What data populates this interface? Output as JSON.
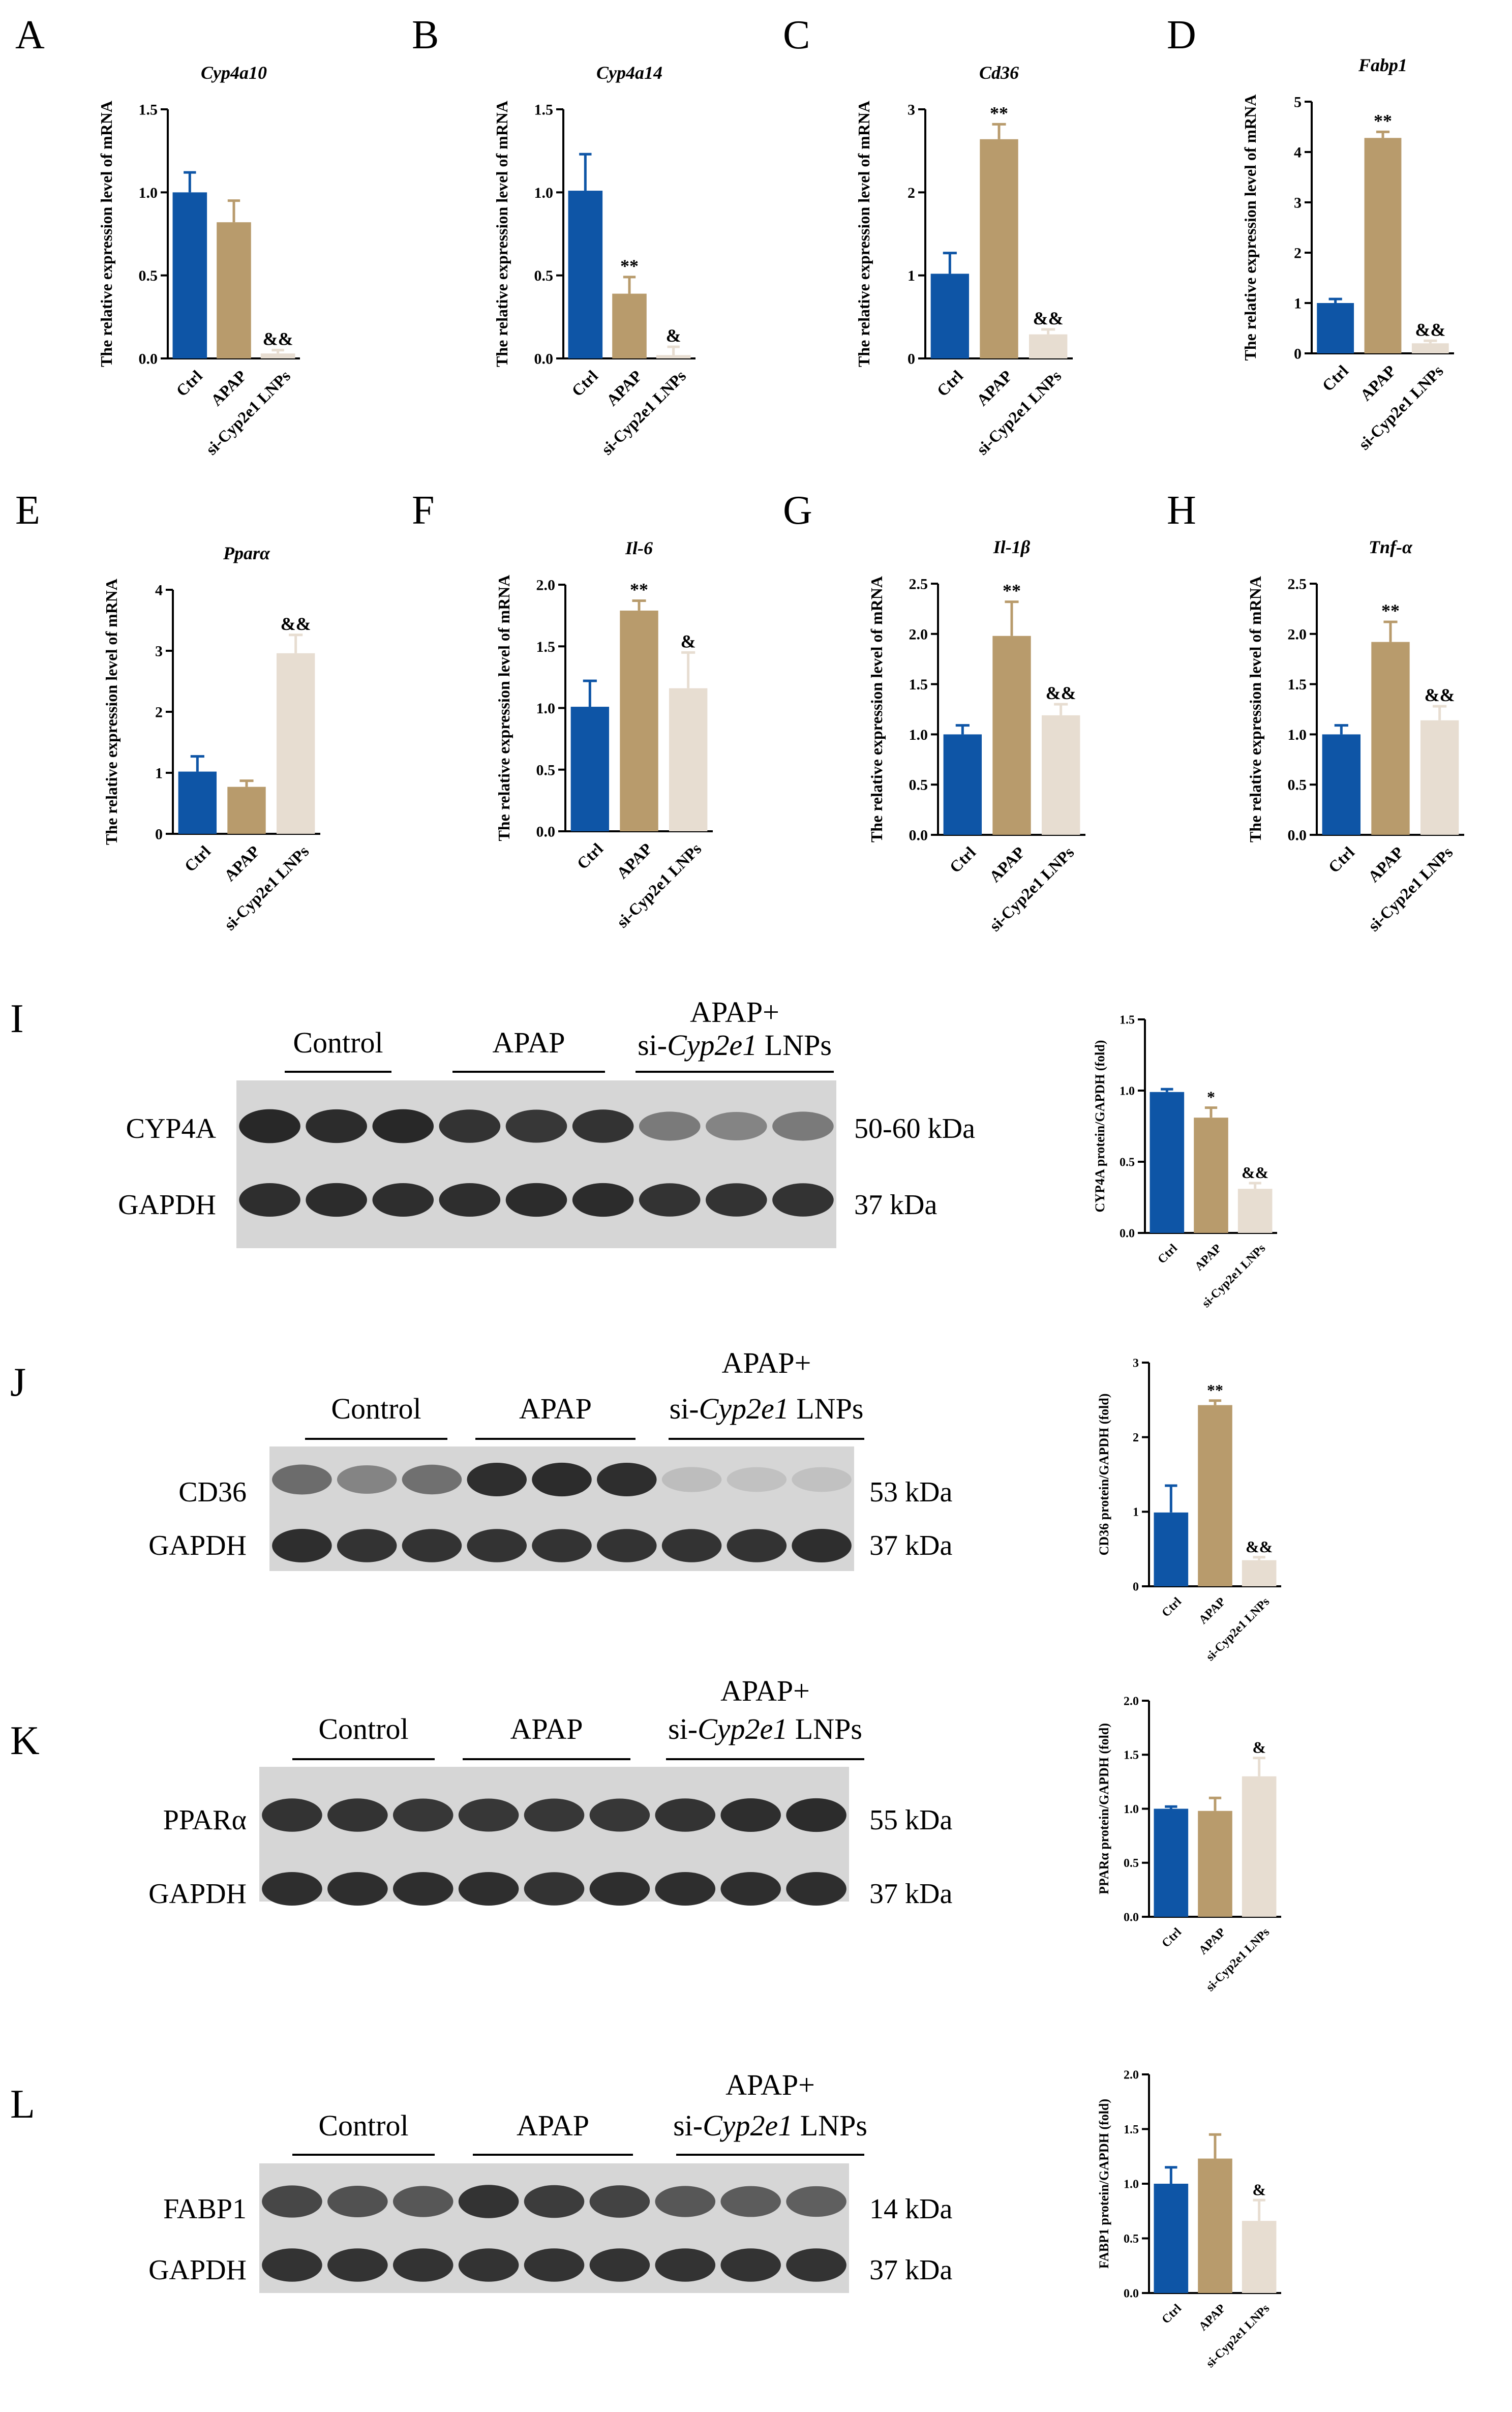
{
  "colors": {
    "ctrl": "#0e55a6",
    "apap": "#b89b6c",
    "si": "#e7ddd1",
    "axis": "#000000"
  },
  "panels": [
    {
      "letter": "A",
      "title": "Cyp4a10",
      "ylabel": "The relative expression level of mRNA",
      "categories": [
        "Ctrl",
        "APAP",
        "si-Cyp2e1 LNPs"
      ],
      "values": [
        1.0,
        0.82,
        0.03
      ],
      "errors": [
        0.12,
        0.13,
        0.02
      ],
      "sig": [
        "",
        "",
        "&&"
      ],
      "ylim": [
        0,
        1.5
      ],
      "ticks": [
        0.0,
        0.5,
        1.0,
        1.5
      ],
      "tick_labels": [
        "0.0",
        "0.5",
        "1.0",
        "1.5"
      ]
    },
    {
      "letter": "B",
      "title": "Cyp4a14",
      "ylabel": "The relative expression level of mRNA",
      "categories": [
        "Ctrl",
        "APAP",
        "si-Cyp2e1 LNPs"
      ],
      "values": [
        1.01,
        0.39,
        0.02
      ],
      "errors": [
        0.22,
        0.1,
        0.05
      ],
      "sig": [
        "",
        "**",
        "&"
      ],
      "ylim": [
        0,
        1.5
      ],
      "ticks": [
        0.0,
        0.5,
        1.0,
        1.5
      ],
      "tick_labels": [
        "0.0",
        "0.5",
        "1.0",
        "1.5"
      ]
    },
    {
      "letter": "C",
      "title": "Cd36",
      "ylabel": "The relative expression level of mRNA",
      "categories": [
        "Ctrl",
        "APAP",
        "si-Cyp2e1 LNPs"
      ],
      "values": [
        1.02,
        2.64,
        0.29
      ],
      "errors": [
        0.25,
        0.18,
        0.06
      ],
      "sig": [
        "",
        "**",
        "&&"
      ],
      "ylim": [
        0,
        3
      ],
      "ticks": [
        0,
        1,
        2,
        3
      ],
      "tick_labels": [
        "0",
        "1",
        "2",
        "3"
      ]
    },
    {
      "letter": "D",
      "title": "Fabp1",
      "ylabel": "The relative expression level of mRNA",
      "categories": [
        "Ctrl",
        "APAP",
        "si-Cyp2e1 LNPs"
      ],
      "values": [
        1.0,
        4.28,
        0.2
      ],
      "errors": [
        0.08,
        0.12,
        0.05
      ],
      "sig": [
        "",
        "**",
        "&&"
      ],
      "ylim": [
        0,
        5
      ],
      "ticks": [
        0,
        1,
        2,
        3,
        4,
        5
      ],
      "tick_labels": [
        "0",
        "1",
        "2",
        "3",
        "4",
        "5"
      ]
    },
    {
      "letter": "E",
      "title": "Pparα",
      "ylabel": "The relative expression level of mRNA",
      "categories": [
        "Ctrl",
        "APAP",
        "si-Cyp2e1 LNPs"
      ],
      "values": [
        1.02,
        0.77,
        2.96
      ],
      "errors": [
        0.25,
        0.1,
        0.3
      ],
      "sig": [
        "",
        "",
        "&&"
      ],
      "ylim": [
        0,
        4
      ],
      "ticks": [
        0,
        1,
        2,
        3,
        4
      ],
      "tick_labels": [
        "0",
        "1",
        "2",
        "3",
        "4"
      ]
    },
    {
      "letter": "F",
      "title": "Il-6",
      "ylabel": "The relative expression level of mRNA",
      "categories": [
        "Ctrl",
        "APAP",
        "si-Cyp2e1 LNPs"
      ],
      "values": [
        1.01,
        1.79,
        1.16
      ],
      "errors": [
        0.21,
        0.08,
        0.29
      ],
      "sig": [
        "",
        "**",
        "&"
      ],
      "ylim": [
        0,
        2.0
      ],
      "ticks": [
        0.0,
        0.5,
        1.0,
        1.5,
        2.0
      ],
      "tick_labels": [
        "0.0",
        "0.5",
        "1.0",
        "1.5",
        "2.0"
      ]
    },
    {
      "letter": "G",
      "title": "Il-1β",
      "ylabel": "The relative expression level of mRNA",
      "categories": [
        "Ctrl",
        "APAP",
        "si-Cyp2e1 LNPs"
      ],
      "values": [
        1.0,
        1.98,
        1.19
      ],
      "errors": [
        0.09,
        0.34,
        0.11
      ],
      "sig": [
        "",
        "**",
        "&&"
      ],
      "ylim": [
        0,
        2.5
      ],
      "ticks": [
        0.0,
        0.5,
        1.0,
        1.5,
        2.0,
        2.5
      ],
      "tick_labels": [
        "0.0",
        "0.5",
        "1.0",
        "1.5",
        "2.0",
        "2.5"
      ]
    },
    {
      "letter": "H",
      "title": "Tnf-α",
      "ylabel": "The relative expression level of mRNA",
      "categories": [
        "Ctrl",
        "APAP",
        "si-Cyp2e1 LNPs"
      ],
      "values": [
        1.0,
        1.92,
        1.14
      ],
      "errors": [
        0.09,
        0.2,
        0.14
      ],
      "sig": [
        "",
        "**",
        "&&"
      ],
      "ylim": [
        0,
        2.5
      ],
      "ticks": [
        0.0,
        0.5,
        1.0,
        1.5,
        2.0,
        2.5
      ],
      "tick_labels": [
        "0.0",
        "0.5",
        "1.0",
        "1.5",
        "2.0",
        "2.5"
      ]
    }
  ],
  "blot_rows": [
    {
      "letter": "I",
      "group_labels": [
        "Control",
        "APAP",
        "APAP+",
        "si-",
        "Cyp2e1",
        " LNPs"
      ],
      "bands": [
        {
          "name": "CYP4A",
          "size": "50-60 kDa",
          "intensity": [
            0.95,
            0.93,
            0.95,
            0.9,
            0.88,
            0.9,
            0.55,
            0.5,
            0.55
          ]
        },
        {
          "name": "GAPDH",
          "size": "37 kDa",
          "intensity": [
            0.92,
            0.93,
            0.92,
            0.92,
            0.93,
            0.93,
            0.9,
            0.9,
            0.9
          ]
        }
      ],
      "chart": {
        "ylabel": "CYP4A protein/GAPDH (fold)",
        "categories": [
          "Ctrl",
          "APAP",
          "si-Cyp2e1 LNPs"
        ],
        "values": [
          0.99,
          0.81,
          0.31
        ],
        "errors": [
          0.02,
          0.07,
          0.04
        ],
        "sig": [
          "",
          "*",
          "&&"
        ],
        "ylim": [
          0,
          1.5
        ],
        "ticks": [
          0.0,
          0.5,
          1.0,
          1.5
        ],
        "tick_labels": [
          "0.0",
          "0.5",
          "1.0",
          "1.5"
        ]
      }
    },
    {
      "letter": "J",
      "group_labels": [
        "Control",
        "APAP",
        "APAP+",
        "si-",
        "Cyp2e1",
        " LNPs"
      ],
      "bands": [
        {
          "name": "CD36",
          "size": "53 kDa",
          "intensity": [
            0.62,
            0.5,
            0.6,
            0.92,
            0.93,
            0.92,
            0.22,
            0.2,
            0.2
          ]
        },
        {
          "name": "GAPDH",
          "size": "37 kDa",
          "intensity": [
            0.92,
            0.9,
            0.9,
            0.9,
            0.9,
            0.9,
            0.9,
            0.9,
            0.92
          ]
        }
      ],
      "chart": {
        "ylabel": "CD36 protein/GAPDH (fold)",
        "categories": [
          "Ctrl",
          "APAP",
          "si-Cyp2e1 LNPs"
        ],
        "values": [
          0.99,
          2.43,
          0.35
        ],
        "errors": [
          0.36,
          0.06,
          0.04
        ],
        "sig": [
          "",
          "**",
          "&&"
        ],
        "ylim": [
          0,
          3
        ],
        "ticks": [
          0,
          1,
          2,
          3
        ],
        "tick_labels": [
          "0",
          "1",
          "2",
          "3"
        ]
      }
    },
    {
      "letter": "K",
      "group_labels": [
        "Control",
        "APAP",
        "APAP+",
        "si-",
        "Cyp2e1",
        " LNPs"
      ],
      "bands": [
        {
          "name": "PPARα",
          "size": "55 kDa",
          "intensity": [
            0.9,
            0.9,
            0.88,
            0.88,
            0.88,
            0.88,
            0.9,
            0.92,
            0.93
          ]
        },
        {
          "name": "GAPDH",
          "size": "37 kDa",
          "intensity": [
            0.92,
            0.92,
            0.92,
            0.92,
            0.9,
            0.92,
            0.92,
            0.92,
            0.92
          ]
        }
      ],
      "chart": {
        "ylabel": "PPARα protein/GAPDH (fold)",
        "categories": [
          "Ctrl",
          "APAP",
          "si-Cyp2e1 LNPs"
        ],
        "values": [
          1.0,
          0.98,
          1.3
        ],
        "errors": [
          0.02,
          0.12,
          0.17
        ],
        "sig": [
          "",
          "",
          "&"
        ],
        "ylim": [
          0,
          2.0
        ],
        "ticks": [
          0.0,
          0.5,
          1.0,
          1.5,
          2.0
        ],
        "tick_labels": [
          "0.0",
          "0.5",
          "1.0",
          "1.5",
          "2.0"
        ]
      }
    },
    {
      "letter": "L",
      "group_labels": [
        "Control",
        "APAP",
        "APAP+",
        "si-",
        "Cyp2e1",
        " LNPs"
      ],
      "bands": [
        {
          "name": "FABP1",
          "size": "14 kDa",
          "intensity": [
            0.8,
            0.75,
            0.72,
            0.9,
            0.85,
            0.82,
            0.72,
            0.7,
            0.68
          ]
        },
        {
          "name": "GAPDH",
          "size": "37 kDa",
          "intensity": [
            0.9,
            0.9,
            0.9,
            0.9,
            0.9,
            0.9,
            0.9,
            0.9,
            0.9
          ]
        }
      ],
      "chart": {
        "ylabel": "FABP1 protein/GAPDH (fold)",
        "categories": [
          "Ctrl",
          "APAP",
          "si-Cyp2e1 LNPs"
        ],
        "values": [
          1.0,
          1.23,
          0.66
        ],
        "errors": [
          0.15,
          0.22,
          0.19
        ],
        "sig": [
          "",
          "",
          "&"
        ],
        "ylim": [
          0,
          2.0
        ],
        "ticks": [
          0.0,
          0.5,
          1.0,
          1.5,
          2.0
        ],
        "tick_labels": [
          "0.0",
          "0.5",
          "1.0",
          "1.5",
          "2.0"
        ]
      }
    }
  ],
  "chart_data": [
    {
      "type": "bar",
      "title": "Cyp4a10",
      "ylabel": "The relative expression level of mRNA",
      "categories": [
        "Ctrl",
        "APAP",
        "si-Cyp2e1 LNPs"
      ],
      "values": [
        1.0,
        0.82,
        0.03
      ],
      "errors": [
        0.12,
        0.13,
        0.02
      ],
      "annotations": [
        "",
        "",
        "&&"
      ],
      "ylim": [
        0,
        1.5
      ]
    },
    {
      "type": "bar",
      "title": "Cyp4a14",
      "ylabel": "The relative expression level of mRNA",
      "categories": [
        "Ctrl",
        "APAP",
        "si-Cyp2e1 LNPs"
      ],
      "values": [
        1.01,
        0.39,
        0.02
      ],
      "errors": [
        0.22,
        0.1,
        0.05
      ],
      "annotations": [
        "",
        "**",
        "&"
      ],
      "ylim": [
        0,
        1.5
      ]
    },
    {
      "type": "bar",
      "title": "Cd36",
      "ylabel": "The relative expression level of mRNA",
      "categories": [
        "Ctrl",
        "APAP",
        "si-Cyp2e1 LNPs"
      ],
      "values": [
        1.02,
        2.64,
        0.29
      ],
      "errors": [
        0.25,
        0.18,
        0.06
      ],
      "annotations": [
        "",
        "**",
        "&&"
      ],
      "ylim": [
        0,
        3
      ]
    },
    {
      "type": "bar",
      "title": "Fabp1",
      "ylabel": "The relative expression level of mRNA",
      "categories": [
        "Ctrl",
        "APAP",
        "si-Cyp2e1 LNPs"
      ],
      "values": [
        1.0,
        4.28,
        0.2
      ],
      "errors": [
        0.08,
        0.12,
        0.05
      ],
      "annotations": [
        "",
        "**",
        "&&"
      ],
      "ylim": [
        0,
        5
      ]
    },
    {
      "type": "bar",
      "title": "Pparα",
      "ylabel": "The relative expression level of mRNA",
      "categories": [
        "Ctrl",
        "APAP",
        "si-Cyp2e1 LNPs"
      ],
      "values": [
        1.02,
        0.77,
        2.96
      ],
      "errors": [
        0.25,
        0.1,
        0.3
      ],
      "annotations": [
        "",
        "",
        "&&"
      ],
      "ylim": [
        0,
        4
      ]
    },
    {
      "type": "bar",
      "title": "Il-6",
      "ylabel": "The relative expression level of mRNA",
      "categories": [
        "Ctrl",
        "APAP",
        "si-Cyp2e1 LNPs"
      ],
      "values": [
        1.01,
        1.79,
        1.16
      ],
      "errors": [
        0.21,
        0.08,
        0.29
      ],
      "annotations": [
        "",
        "**",
        "&"
      ],
      "ylim": [
        0,
        2.0
      ]
    },
    {
      "type": "bar",
      "title": "Il-1β",
      "ylabel": "The relative expression level of mRNA",
      "categories": [
        "Ctrl",
        "APAP",
        "si-Cyp2e1 LNPs"
      ],
      "values": [
        1.0,
        1.98,
        1.19
      ],
      "errors": [
        0.09,
        0.34,
        0.11
      ],
      "annotations": [
        "",
        "**",
        "&&"
      ],
      "ylim": [
        0,
        2.5
      ]
    },
    {
      "type": "bar",
      "title": "Tnf-α",
      "ylabel": "The relative expression level of mRNA",
      "categories": [
        "Ctrl",
        "APAP",
        "si-Cyp2e1 LNPs"
      ],
      "values": [
        1.0,
        1.92,
        1.14
      ],
      "errors": [
        0.09,
        0.2,
        0.14
      ],
      "annotations": [
        "",
        "**",
        "&&"
      ],
      "ylim": [
        0,
        2.5
      ]
    },
    {
      "type": "bar",
      "ylabel": "CYP4A protein/GAPDH (fold)",
      "categories": [
        "Ctrl",
        "APAP",
        "si-Cyp2e1 LNPs"
      ],
      "values": [
        0.99,
        0.81,
        0.31
      ],
      "errors": [
        0.02,
        0.07,
        0.04
      ],
      "annotations": [
        "",
        "*",
        "&&"
      ],
      "ylim": [
        0,
        1.5
      ]
    },
    {
      "type": "bar",
      "ylabel": "CD36 protein/GAPDH (fold)",
      "categories": [
        "Ctrl",
        "APAP",
        "si-Cyp2e1 LNPs"
      ],
      "values": [
        0.99,
        2.43,
        0.35
      ],
      "errors": [
        0.36,
        0.06,
        0.04
      ],
      "annotations": [
        "",
        "**",
        "&&"
      ],
      "ylim": [
        0,
        3
      ]
    },
    {
      "type": "bar",
      "ylabel": "PPARα protein/GAPDH (fold)",
      "categories": [
        "Ctrl",
        "APAP",
        "si-Cyp2e1 LNPs"
      ],
      "values": [
        1.0,
        0.98,
        1.3
      ],
      "errors": [
        0.02,
        0.12,
        0.17
      ],
      "annotations": [
        "",
        "",
        "&"
      ],
      "ylim": [
        0,
        2.0
      ]
    },
    {
      "type": "bar",
      "ylabel": "FABP1 protein/GAPDH (fold)",
      "categories": [
        "Ctrl",
        "APAP",
        "si-Cyp2e1 LNPs"
      ],
      "values": [
        1.0,
        1.23,
        0.66
      ],
      "errors": [
        0.15,
        0.22,
        0.19
      ],
      "annotations": [
        "",
        "",
        "&"
      ],
      "ylim": [
        0,
        2.0
      ]
    }
  ]
}
